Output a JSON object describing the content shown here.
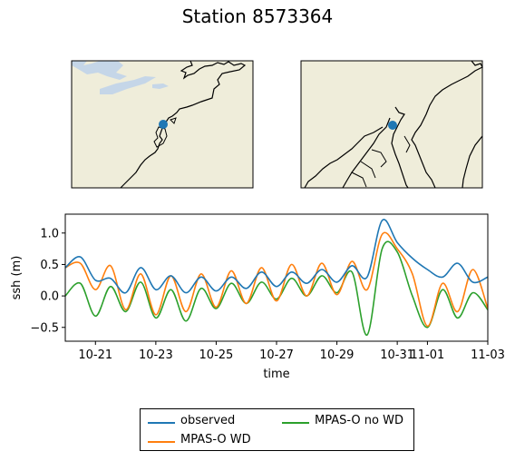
{
  "title": "Station 8573364",
  "colors": {
    "land": "#efedda",
    "water": "#c5d6e8",
    "marker": "#1f77b4",
    "observed": "#1f77b4",
    "wd": "#ff7f0e",
    "nowd": "#2ca02c"
  },
  "maps": [
    {
      "name": "overview",
      "features": [
        "coastline",
        "great-lakes",
        "station-marker"
      ]
    },
    {
      "name": "zoomed",
      "features": [
        "coastline",
        "chesapeake-bay",
        "station-marker"
      ]
    }
  ],
  "chart_data": {
    "type": "line",
    "xlabel": "time",
    "ylabel": "ssh (m)",
    "xlim": [
      "2017-10-20",
      "2017-11-03"
    ],
    "ylim": [
      -0.72,
      1.3
    ],
    "x_ticks": [
      {
        "date": "2017-10-21",
        "label": "10-21"
      },
      {
        "date": "2017-10-23",
        "label": "10-23"
      },
      {
        "date": "2017-10-25",
        "label": "10-25"
      },
      {
        "date": "2017-10-27",
        "label": "10-27"
      },
      {
        "date": "2017-10-29",
        "label": "10-29"
      },
      {
        "date": "2017-10-31",
        "label": "10-31"
      },
      {
        "date": "2017-11-01",
        "label": "11-01"
      },
      {
        "date": "2017-11-03",
        "label": "11-03"
      }
    ],
    "y_ticks": [
      -0.5,
      0.0,
      0.5,
      1.0
    ],
    "y_tick_labels": [
      "−0.5",
      "0.0",
      "0.5",
      "1.0"
    ],
    "grid": false,
    "legend": "below-center",
    "series": [
      {
        "name": "observed",
        "color": "#1f77b4",
        "x": [
          "2017-10-20",
          "2017-10-20.5",
          "2017-10-21",
          "2017-10-21.5",
          "2017-10-22",
          "2017-10-22.5",
          "2017-10-23",
          "2017-10-23.5",
          "2017-10-24",
          "2017-10-24.5",
          "2017-10-25",
          "2017-10-25.5",
          "2017-10-26",
          "2017-10-26.5",
          "2017-10-27",
          "2017-10-27.5",
          "2017-10-28",
          "2017-10-28.5",
          "2017-10-29",
          "2017-10-29.5",
          "2017-10-30",
          "2017-10-30.5",
          "2017-10-31",
          "2017-10-31.5",
          "2017-11-01",
          "2017-11-01.5",
          "2017-11-02",
          "2017-11-02.5",
          "2017-11-03"
        ],
        "y": [
          0.45,
          0.62,
          0.25,
          0.28,
          0.05,
          0.45,
          0.1,
          0.32,
          0.05,
          0.3,
          0.08,
          0.3,
          0.12,
          0.38,
          0.15,
          0.38,
          0.2,
          0.42,
          0.22,
          0.48,
          0.3,
          1.2,
          0.85,
          0.6,
          0.42,
          0.3,
          0.52,
          0.22,
          0.3
        ]
      },
      {
        "name": "MPAS-O WD",
        "color": "#ff7f0e",
        "x": [
          "2017-10-20",
          "2017-10-20.5",
          "2017-10-21",
          "2017-10-21.5",
          "2017-10-22",
          "2017-10-22.5",
          "2017-10-23",
          "2017-10-23.5",
          "2017-10-24",
          "2017-10-24.5",
          "2017-10-25",
          "2017-10-25.5",
          "2017-10-26",
          "2017-10-26.5",
          "2017-10-27",
          "2017-10-27.5",
          "2017-10-28",
          "2017-10-28.5",
          "2017-10-29",
          "2017-10-29.5",
          "2017-10-30",
          "2017-10-30.5",
          "2017-10-31",
          "2017-10-31.5",
          "2017-11-01",
          "2017-11-01.5",
          "2017-11-02",
          "2017-11-02.5",
          "2017-11-03"
        ],
        "y": [
          0.45,
          0.52,
          0.1,
          0.48,
          -0.22,
          0.35,
          -0.3,
          0.32,
          -0.25,
          0.35,
          -0.18,
          0.4,
          -0.12,
          0.45,
          -0.08,
          0.5,
          0.0,
          0.52,
          0.02,
          0.55,
          0.1,
          0.98,
          0.75,
          0.35,
          -0.48,
          0.2,
          -0.25,
          0.42,
          -0.2
        ]
      },
      {
        "name": "MPAS-O no WD",
        "color": "#2ca02c",
        "x": [
          "2017-10-20",
          "2017-10-20.5",
          "2017-10-21",
          "2017-10-21.5",
          "2017-10-22",
          "2017-10-22.5",
          "2017-10-23",
          "2017-10-23.5",
          "2017-10-24",
          "2017-10-24.5",
          "2017-10-25",
          "2017-10-25.5",
          "2017-10-26",
          "2017-10-26.5",
          "2017-10-27",
          "2017-10-27.5",
          "2017-10-28",
          "2017-10-28.5",
          "2017-10-29",
          "2017-10-29.5",
          "2017-10-30",
          "2017-10-30.5",
          "2017-10-31",
          "2017-10-31.5",
          "2017-11-01",
          "2017-11-01.5",
          "2017-11-02",
          "2017-11-02.5",
          "2017-11-03"
        ],
        "y": [
          0.0,
          0.2,
          -0.32,
          0.15,
          -0.25,
          0.22,
          -0.35,
          0.1,
          -0.4,
          0.12,
          -0.2,
          0.2,
          -0.12,
          0.22,
          -0.05,
          0.28,
          0.0,
          0.32,
          0.05,
          0.38,
          -0.62,
          0.75,
          0.7,
          0.0,
          -0.5,
          0.1,
          -0.35,
          0.05,
          -0.22
        ]
      }
    ]
  }
}
